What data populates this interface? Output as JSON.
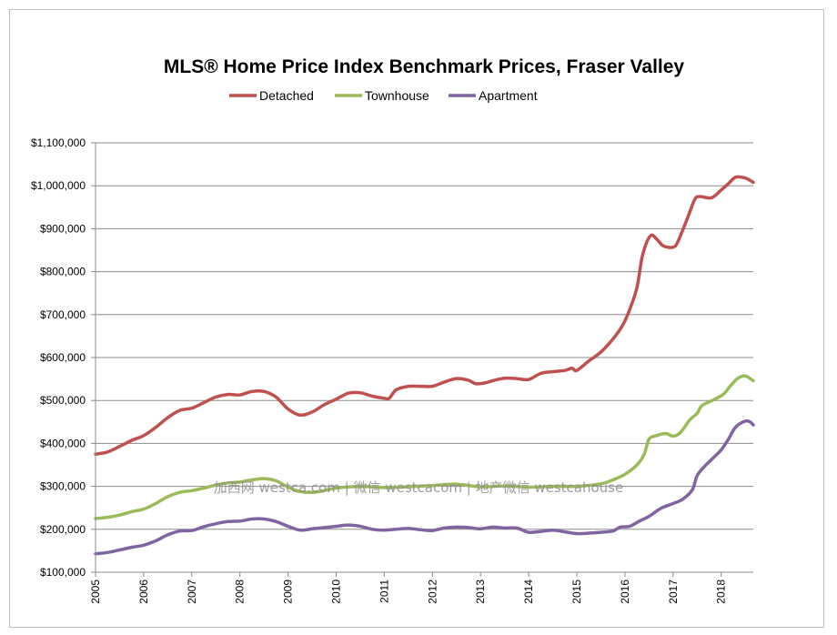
{
  "chart_data": {
    "type": "line",
    "title": "MLS® Home Price Index Benchmark Prices, Fraser Valley",
    "xlabel": "",
    "ylabel": "",
    "ylim": [
      100000,
      1100000
    ],
    "xlim": [
      2005.0,
      2018.667
    ],
    "y_ticks": [
      "$100,000",
      "$200,000",
      "$300,000",
      "$400,000",
      "$500,000",
      "$600,000",
      "$700,000",
      "$800,000",
      "$900,000",
      "$1,000,000",
      "$1,100,000"
    ],
    "y_tick_values": [
      100000,
      200000,
      300000,
      400000,
      500000,
      600000,
      700000,
      800000,
      900000,
      1000000,
      1100000
    ],
    "x_ticks": [
      "2005",
      "2006",
      "2007",
      "2008",
      "2009",
      "2010",
      "2011",
      "2012",
      "2013",
      "2014",
      "2015",
      "2016",
      "2017",
      "2018"
    ],
    "grid": "horizontal",
    "legend_position": "top",
    "watermark": "加西网 westca.com | 微信 westcacom | 地产微信 westcahouse",
    "series": [
      {
        "name": "Detached",
        "color": "#c0504d",
        "points": [
          [
            2005.0,
            375000
          ],
          [
            2005.25,
            380000
          ],
          [
            2005.5,
            393000
          ],
          [
            2005.75,
            407000
          ],
          [
            2006.0,
            418000
          ],
          [
            2006.25,
            437000
          ],
          [
            2006.5,
            460000
          ],
          [
            2006.75,
            477000
          ],
          [
            2007.0,
            482000
          ],
          [
            2007.25,
            495000
          ],
          [
            2007.5,
            508000
          ],
          [
            2007.75,
            514000
          ],
          [
            2008.0,
            513000
          ],
          [
            2008.25,
            521000
          ],
          [
            2008.5,
            521000
          ],
          [
            2008.75,
            508000
          ],
          [
            2009.0,
            480000
          ],
          [
            2009.25,
            466000
          ],
          [
            2009.5,
            473000
          ],
          [
            2009.75,
            490000
          ],
          [
            2010.0,
            503000
          ],
          [
            2010.25,
            517000
          ],
          [
            2010.5,
            518000
          ],
          [
            2010.75,
            510000
          ],
          [
            2011.0,
            505000
          ],
          [
            2011.1,
            505000
          ],
          [
            2011.25,
            525000
          ],
          [
            2011.5,
            533000
          ],
          [
            2011.75,
            533000
          ],
          [
            2012.0,
            533000
          ],
          [
            2012.25,
            543000
          ],
          [
            2012.5,
            551000
          ],
          [
            2012.75,
            547000
          ],
          [
            2012.9,
            539000
          ],
          [
            2013.1,
            541000
          ],
          [
            2013.25,
            546000
          ],
          [
            2013.5,
            552000
          ],
          [
            2013.75,
            551000
          ],
          [
            2014.0,
            549000
          ],
          [
            2014.25,
            563000
          ],
          [
            2014.5,
            567000
          ],
          [
            2014.75,
            570000
          ],
          [
            2014.9,
            575000
          ],
          [
            2015.0,
            570000
          ],
          [
            2015.25,
            592000
          ],
          [
            2015.5,
            613000
          ],
          [
            2015.75,
            643000
          ],
          [
            2015.95,
            675000
          ],
          [
            2016.1,
            712000
          ],
          [
            2016.25,
            763000
          ],
          [
            2016.35,
            830000
          ],
          [
            2016.45,
            868000
          ],
          [
            2016.55,
            885000
          ],
          [
            2016.65,
            877000
          ],
          [
            2016.8,
            860000
          ],
          [
            2017.0,
            857000
          ],
          [
            2017.1,
            870000
          ],
          [
            2017.3,
            925000
          ],
          [
            2017.45,
            968000
          ],
          [
            2017.55,
            975000
          ],
          [
            2017.8,
            972000
          ],
          [
            2018.0,
            990000
          ],
          [
            2018.15,
            1005000
          ],
          [
            2018.3,
            1020000
          ],
          [
            2018.5,
            1018000
          ],
          [
            2018.667,
            1008000
          ]
        ]
      },
      {
        "name": "Townhouse",
        "color": "#9bbb59",
        "points": [
          [
            2005.0,
            225000
          ],
          [
            2005.25,
            228000
          ],
          [
            2005.5,
            233000
          ],
          [
            2005.75,
            241000
          ],
          [
            2006.0,
            247000
          ],
          [
            2006.25,
            260000
          ],
          [
            2006.5,
            276000
          ],
          [
            2006.75,
            286000
          ],
          [
            2007.0,
            290000
          ],
          [
            2007.25,
            296000
          ],
          [
            2007.5,
            303000
          ],
          [
            2007.75,
            308000
          ],
          [
            2008.0,
            310000
          ],
          [
            2008.25,
            315000
          ],
          [
            2008.5,
            318000
          ],
          [
            2008.75,
            313000
          ],
          [
            2009.0,
            298000
          ],
          [
            2009.25,
            288000
          ],
          [
            2009.5,
            286000
          ],
          [
            2009.75,
            290000
          ],
          [
            2010.0,
            296000
          ],
          [
            2010.5,
            300000
          ],
          [
            2011.0,
            297000
          ],
          [
            2011.5,
            299000
          ],
          [
            2012.0,
            302000
          ],
          [
            2012.5,
            305000
          ],
          [
            2013.0,
            299000
          ],
          [
            2013.5,
            301000
          ],
          [
            2014.0,
            298000
          ],
          [
            2014.5,
            300000
          ],
          [
            2015.0,
            300000
          ],
          [
            2015.5,
            306000
          ],
          [
            2015.75,
            315000
          ],
          [
            2016.0,
            328000
          ],
          [
            2016.25,
            350000
          ],
          [
            2016.4,
            375000
          ],
          [
            2016.5,
            410000
          ],
          [
            2016.65,
            418000
          ],
          [
            2016.85,
            423000
          ],
          [
            2017.0,
            417000
          ],
          [
            2017.15,
            425000
          ],
          [
            2017.35,
            455000
          ],
          [
            2017.5,
            470000
          ],
          [
            2017.6,
            488000
          ],
          [
            2017.85,
            502000
          ],
          [
            2018.05,
            515000
          ],
          [
            2018.2,
            535000
          ],
          [
            2018.35,
            552000
          ],
          [
            2018.5,
            557000
          ],
          [
            2018.667,
            546000
          ]
        ]
      },
      {
        "name": "Apartment",
        "color": "#8064a2",
        "points": [
          [
            2005.0,
            143000
          ],
          [
            2005.25,
            146000
          ],
          [
            2005.5,
            152000
          ],
          [
            2005.75,
            158000
          ],
          [
            2006.0,
            163000
          ],
          [
            2006.25,
            173000
          ],
          [
            2006.5,
            187000
          ],
          [
            2006.75,
            196000
          ],
          [
            2007.0,
            197000
          ],
          [
            2007.25,
            206000
          ],
          [
            2007.5,
            213000
          ],
          [
            2007.75,
            218000
          ],
          [
            2008.0,
            219000
          ],
          [
            2008.25,
            224000
          ],
          [
            2008.5,
            224000
          ],
          [
            2008.75,
            218000
          ],
          [
            2009.0,
            207000
          ],
          [
            2009.25,
            198000
          ],
          [
            2009.5,
            201000
          ],
          [
            2009.75,
            204000
          ],
          [
            2010.0,
            207000
          ],
          [
            2010.25,
            210000
          ],
          [
            2010.5,
            207000
          ],
          [
            2010.75,
            200000
          ],
          [
            2011.0,
            198000
          ],
          [
            2011.25,
            200000
          ],
          [
            2011.5,
            202000
          ],
          [
            2011.75,
            199000
          ],
          [
            2012.0,
            197000
          ],
          [
            2012.25,
            203000
          ],
          [
            2012.5,
            205000
          ],
          [
            2012.75,
            204000
          ],
          [
            2013.0,
            201000
          ],
          [
            2013.25,
            205000
          ],
          [
            2013.5,
            203000
          ],
          [
            2013.75,
            203000
          ],
          [
            2014.0,
            193000
          ],
          [
            2014.25,
            195000
          ],
          [
            2014.5,
            198000
          ],
          [
            2014.75,
            194000
          ],
          [
            2015.0,
            190000
          ],
          [
            2015.25,
            191000
          ],
          [
            2015.5,
            193000
          ],
          [
            2015.75,
            196000
          ],
          [
            2015.9,
            205000
          ],
          [
            2016.1,
            207000
          ],
          [
            2016.3,
            219000
          ],
          [
            2016.5,
            230000
          ],
          [
            2016.75,
            249000
          ],
          [
            2017.0,
            260000
          ],
          [
            2017.2,
            270000
          ],
          [
            2017.4,
            292000
          ],
          [
            2017.5,
            325000
          ],
          [
            2017.65,
            346000
          ],
          [
            2017.85,
            368000
          ],
          [
            2018.0,
            385000
          ],
          [
            2018.15,
            410000
          ],
          [
            2018.3,
            438000
          ],
          [
            2018.5,
            452000
          ],
          [
            2018.6,
            450000
          ],
          [
            2018.667,
            443000
          ]
        ]
      }
    ]
  }
}
